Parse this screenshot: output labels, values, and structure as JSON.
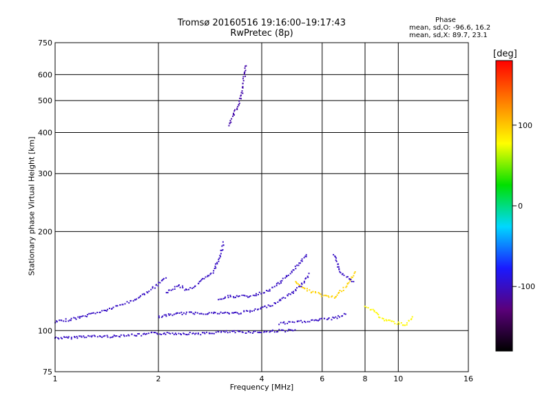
{
  "header": {
    "title_line1": "Tromsø 20160516 19:16:00–19:17:43",
    "title_line2": "RwPretec (8p)"
  },
  "phase_box": {
    "title": "Phase",
    "line_o": "mean, sd,O: -96.6, 16.2",
    "line_x": "mean, sd,X:  89.7, 23.1"
  },
  "chart_data": {
    "type": "scatter",
    "title": "Tromsø 20160516 19:16:00–19:17:43",
    "subtitle": "RwPretec (8p)",
    "xlabel": "Frequency [MHz]",
    "ylabel": "Stationary phase Virtual Height [km]",
    "x_scale": "log",
    "y_scale": "log",
    "xlim": [
      1,
      16
    ],
    "ylim": [
      75,
      750
    ],
    "x_ticks": [
      1,
      2,
      4,
      6,
      8,
      10,
      16
    ],
    "y_ticks": [
      75,
      100,
      200,
      300,
      400,
      500,
      600,
      750
    ],
    "x_ticklabels": [
      "1",
      "2",
      "4",
      "6",
      "8",
      "10",
      "16"
    ],
    "y_ticklabels": [
      "75",
      "100",
      "200",
      "300",
      "400",
      "500",
      "600",
      "750"
    ],
    "grid": true,
    "colorbar": {
      "label": "[deg]",
      "range": [
        -180,
        180
      ],
      "ticks": [
        100,
        0,
        -100
      ],
      "ticklabels": [
        "100",
        "0",
        "-100"
      ],
      "colors": [
        "#000000",
        "#5a007a",
        "#1a1aff",
        "#00d8ff",
        "#00e000",
        "#ffff00",
        "#ff8000",
        "#ff0000"
      ]
    },
    "series": [
      {
        "x": [
          1.0,
          1.05,
          1.1,
          1.2,
          1.3,
          1.4,
          1.5,
          1.6,
          1.7,
          1.8,
          1.9,
          2.0,
          2.2,
          2.4,
          2.6,
          2.8,
          3.0,
          3.2,
          3.5,
          4.0,
          4.5,
          5.0
        ],
        "y": [
          95,
          95,
          95,
          96,
          96,
          96,
          96,
          97,
          97,
          97,
          98,
          98,
          98,
          98,
          98,
          98,
          99,
          99,
          99,
          99,
          100,
          100
        ],
        "phase": -100
      },
      {
        "x": [
          1.0,
          1.1,
          1.2,
          1.3,
          1.4,
          1.5,
          1.6,
          1.7,
          1.8,
          1.9,
          2.0,
          2.1
        ],
        "y": [
          106,
          108,
          110,
          113,
          115,
          118,
          121,
          124,
          128,
          133,
          138,
          145
        ],
        "phase": -100
      },
      {
        "x": [
          2.1,
          2.2,
          2.3,
          2.4,
          2.5,
          2.6,
          2.7,
          2.8,
          2.9,
          3.0,
          3.1
        ],
        "y": [
          130,
          134,
          137,
          133,
          135,
          138,
          143,
          146,
          152,
          165,
          185
        ],
        "phase": -100
      },
      {
        "x": [
          2.0,
          2.2,
          2.4,
          2.6,
          2.8,
          3.0,
          3.2,
          3.4,
          3.6,
          3.8,
          4.0,
          4.3,
          4.6,
          4.9,
          5.2,
          5.5
        ],
        "y": [
          110,
          112,
          113,
          113,
          113,
          113,
          113,
          113,
          114,
          115,
          117,
          120,
          125,
          130,
          137,
          148
        ],
        "phase": -100
      },
      {
        "x": [
          3.0,
          3.2,
          3.4,
          3.6,
          3.8,
          4.0,
          4.2,
          4.4,
          4.6,
          4.8,
          5.0,
          5.2,
          5.4
        ],
        "y": [
          125,
          127,
          127,
          127,
          128,
          130,
          133,
          137,
          142,
          148,
          155,
          162,
          170
        ],
        "phase": -100
      },
      {
        "x": [
          4.5,
          5.0,
          5.5,
          6.0,
          6.5,
          7.0
        ],
        "y": [
          105,
          106,
          107,
          108,
          109,
          112
        ],
        "phase": -100
      },
      {
        "x": [
          3.2,
          3.3,
          3.4,
          3.5,
          3.55,
          3.6
        ],
        "y": [
          420,
          450,
          480,
          520,
          580,
          640
        ],
        "phase": -110
      },
      {
        "x": [
          5.0,
          5.5,
          6.0,
          6.5,
          7.0,
          7.5
        ],
        "y": [
          140,
          132,
          128,
          126,
          135,
          150
        ],
        "phase": 95
      },
      {
        "x": [
          6.5,
          6.8,
          7.1,
          7.4
        ],
        "y": [
          170,
          150,
          145,
          140
        ],
        "phase": -100
      },
      {
        "x": [
          8.0,
          8.5,
          9.0,
          10.5,
          11.0
        ],
        "y": [
          118,
          115,
          108,
          104,
          110
        ],
        "phase": 80
      }
    ]
  }
}
